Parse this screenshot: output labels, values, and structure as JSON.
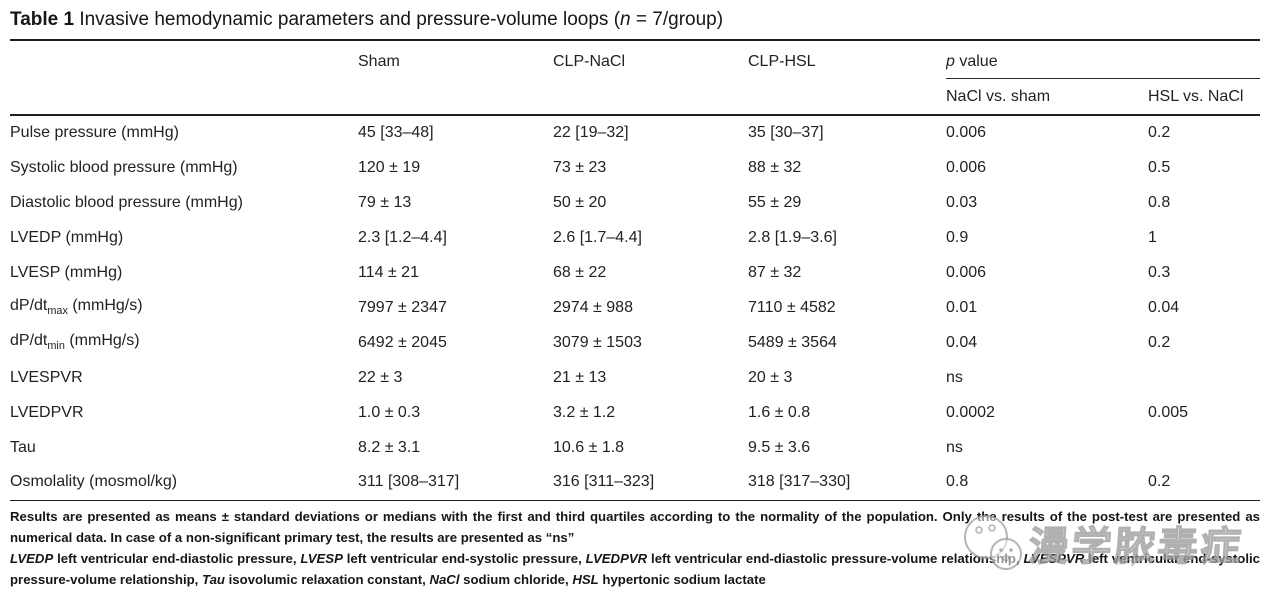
{
  "title": {
    "segments": [
      {
        "t": "Table 1",
        "b": true
      },
      {
        "t": " Invasive hemodynamic parameters and pressure-volume loops ("
      },
      {
        "t": "n",
        "i": true
      },
      {
        "t": " = 7/group)"
      }
    ]
  },
  "table": {
    "col_headers": {
      "param": "",
      "sham": "Sham",
      "clp_nacl": "CLP-NaCl",
      "clp_hsl": "CLP-HSL",
      "p_value": {
        "segments": [
          {
            "t": "p",
            "i": true
          },
          {
            "t": " value"
          }
        ]
      },
      "p_sub1": "NaCl vs. sham",
      "p_sub2": "HSL vs. NaCl"
    },
    "rows": [
      {
        "label": [
          {
            "t": "Pulse pressure (mmHg)"
          }
        ],
        "values": [
          "45 [33–48]",
          "22 [19–32]",
          "35 [30–37]",
          "0.006",
          "0.2"
        ]
      },
      {
        "label": [
          {
            "t": "Systolic blood pressure (mmHg)"
          }
        ],
        "values": [
          "120 ± 19",
          "73 ± 23",
          "88 ± 32",
          "0.006",
          "0.5"
        ]
      },
      {
        "label": [
          {
            "t": "Diastolic blood pressure (mmHg)"
          }
        ],
        "values": [
          "79 ± 13",
          "50 ± 20",
          "55 ± 29",
          "0.03",
          "0.8"
        ]
      },
      {
        "label": [
          {
            "t": "LVEDP (mmHg)"
          }
        ],
        "values": [
          "2.3 [1.2–4.4]",
          "2.6 [1.7–4.4]",
          "2.8 [1.9–3.6]",
          "0.9",
          "1"
        ]
      },
      {
        "label": [
          {
            "t": "LVESP (mmHg)"
          }
        ],
        "values": [
          "114 ± 21",
          "68 ± 22",
          "87 ± 32",
          "0.006",
          "0.3"
        ]
      },
      {
        "label": [
          {
            "t": "dP/dt"
          },
          {
            "t": "max",
            "sub": true
          },
          {
            "t": " (mmHg/s)"
          }
        ],
        "values": [
          "7997 ± 2347",
          "2974 ± 988",
          "7110 ± 4582",
          "0.01",
          "0.04"
        ]
      },
      {
        "label": [
          {
            "t": "dP/dt"
          },
          {
            "t": "min",
            "sub": true
          },
          {
            "t": " (mmHg/s)"
          }
        ],
        "values": [
          "6492 ± 2045",
          "3079 ± 1503",
          "5489 ± 3564",
          "0.04",
          "0.2"
        ]
      },
      {
        "label": [
          {
            "t": "LVESPVR"
          }
        ],
        "values": [
          "22 ± 3",
          "21 ± 13",
          "20 ± 3",
          "ns",
          ""
        ]
      },
      {
        "label": [
          {
            "t": "LVEDPVR"
          }
        ],
        "values": [
          "1.0 ± 0.3",
          "3.2 ± 1.2",
          "1.6 ± 0.8",
          "0.0002",
          "0.005"
        ]
      },
      {
        "label": [
          {
            "t": "Tau"
          }
        ],
        "values": [
          "8.2 ± 3.1",
          "10.6 ± 1.8",
          "9.5 ± 3.6",
          "ns",
          ""
        ]
      },
      {
        "label": [
          {
            "t": "Osmolality (mosmol/kg)"
          }
        ],
        "values": [
          "311 [308–317]",
          "316 [311–323]",
          "318 [317–330]",
          "0.8",
          "0.2"
        ]
      }
    ]
  },
  "footnotes": {
    "note_results": [
      {
        "t": "Results are presented as means ± standard deviations or medians with the first and third quartiles according to the normality of the population. Only the results of the post-test are presented as numerical data. In case of a non-significant primary test, the results are presented as “ns”"
      }
    ],
    "note_abbreviations": [
      {
        "t": "LVEDP",
        "i": true
      },
      {
        "t": " left ventricular end-diastolic pressure, "
      },
      {
        "t": "LVESP",
        "i": true
      },
      {
        "t": " left ventricular end-systolic pressure, "
      },
      {
        "t": "LVEDPVR",
        "i": true
      },
      {
        "t": " left ventricular end-diastolic pressure-volume relationship, "
      },
      {
        "t": "LVESPVR",
        "i": true
      },
      {
        "t": " left ventricular end-systolic pressure-volume relationship, "
      },
      {
        "t": "Tau",
        "i": true
      },
      {
        "t": " isovolumic relaxation constant, "
      },
      {
        "t": "NaCl",
        "i": true
      },
      {
        "t": " sodium chloride, "
      },
      {
        "t": "HSL",
        "i": true
      },
      {
        "t": " hypertonic sodium lactate"
      }
    ]
  },
  "watermark": {
    "text": "漫学脓毒症",
    "color": "#a0a0a0"
  }
}
